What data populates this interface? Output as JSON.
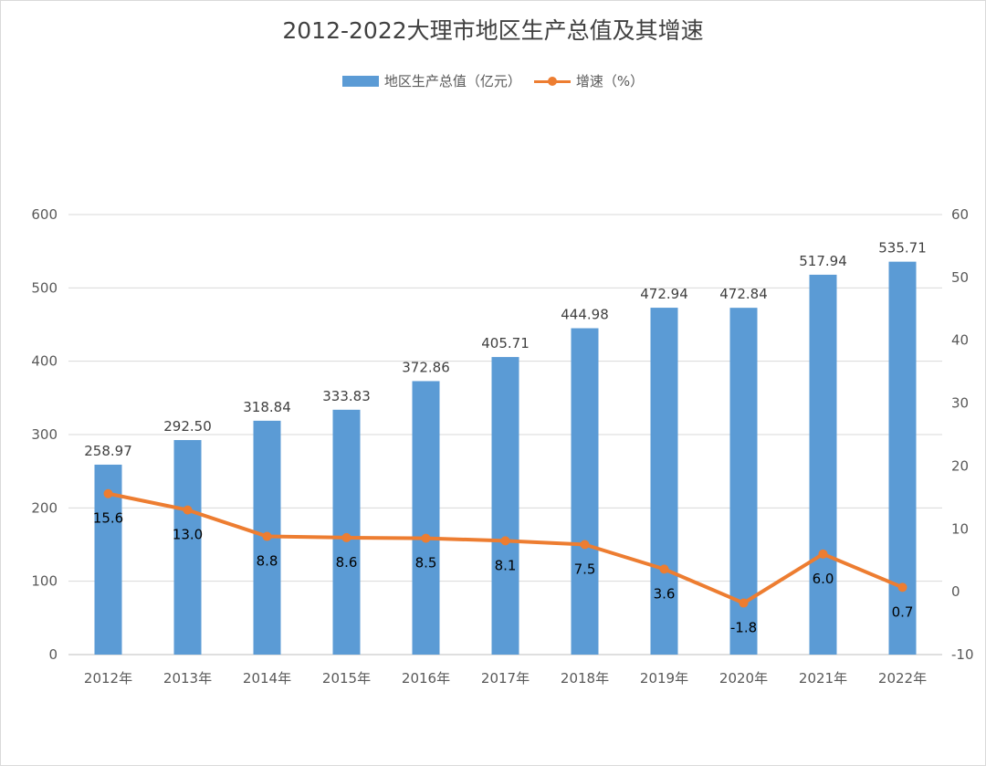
{
  "chart_data": {
    "type": "bar",
    "title": "2012-2022大理市地区生产总值及其增速",
    "categories": [
      "2012年",
      "2013年",
      "2014年",
      "2015年",
      "2016年",
      "2017年",
      "2018年",
      "2019年",
      "2020年",
      "2021年",
      "2022年"
    ],
    "series": [
      {
        "name": "地区生产总值（亿元）",
        "type": "bar",
        "axis": "left",
        "color": "#5b9bd5",
        "values": [
          258.97,
          292.5,
          318.84,
          333.83,
          372.86,
          405.71,
          444.98,
          472.94,
          472.84,
          517.94,
          535.71
        ],
        "labels": [
          "258.97",
          "292.50",
          "318.84",
          "333.83",
          "372.86",
          "405.71",
          "444.98",
          "472.94",
          "472.84",
          "517.94",
          "535.71"
        ]
      },
      {
        "name": "增速（%）",
        "type": "line",
        "axis": "right",
        "color": "#ed7d31",
        "values": [
          15.6,
          13.0,
          8.8,
          8.6,
          8.5,
          8.1,
          7.5,
          3.6,
          -1.8,
          6.0,
          0.7
        ],
        "labels": [
          "15.6",
          "13.0",
          "8.8",
          "8.6",
          "8.5",
          "8.1",
          "7.5",
          "3.6",
          "-1.8",
          "6.0",
          "0.7"
        ]
      }
    ],
    "y_left": {
      "min": 0,
      "max": 600,
      "ticks": [
        "0",
        "100",
        "200",
        "300",
        "400",
        "500",
        "600"
      ]
    },
    "y_right": {
      "min": -10,
      "max": 60,
      "ticks": [
        "-10",
        "0",
        "10",
        "20",
        "30",
        "40",
        "50",
        "60"
      ]
    },
    "grid": true,
    "legend_position": "top"
  }
}
